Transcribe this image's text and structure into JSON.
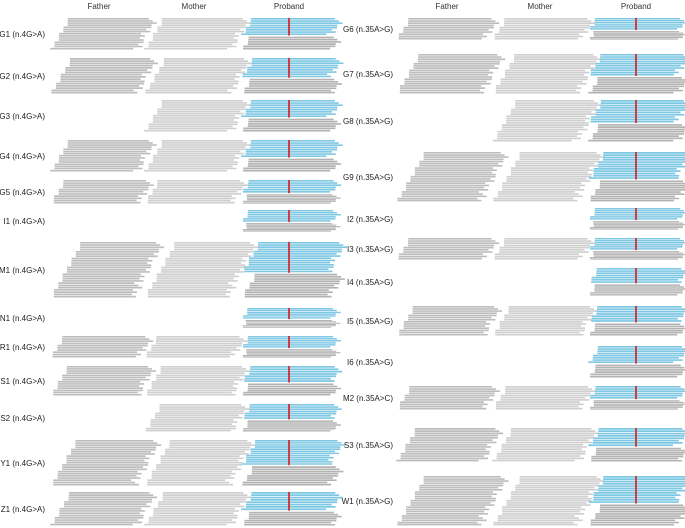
{
  "columns": [
    "Father",
    "Mother",
    "Proband"
  ],
  "colors": {
    "father_read": "#bdbdbd",
    "mother_read": "#cfcfcf",
    "proband_alt": "#7ec8e3",
    "proband_alt_light": "#b5def0",
    "proband_ref": "#b3b3b3",
    "variant_line": "#d7191c"
  },
  "left_panel": [
    {
      "label": "G1 (n.4G>A)",
      "father": true,
      "mother": true
    },
    {
      "label": "G2 (n.4G>A)",
      "father": true,
      "mother": true
    },
    {
      "label": "G3 (n.4G>A)",
      "father": false,
      "mother": true
    },
    {
      "label": "G4 (n.4G>A)",
      "father": true,
      "mother": true
    },
    {
      "label": "G5 (n.4G>A)",
      "father": true,
      "mother": true
    },
    {
      "label": "I1 (n.4G>A)",
      "father": false,
      "mother": false
    },
    {
      "label": "M1 (n.4G>A)",
      "father": true,
      "mother": true
    },
    {
      "label": "N1 (n.4G>A)",
      "father": false,
      "mother": false
    },
    {
      "label": "R1 (n.4G>A)",
      "father": true,
      "mother": true
    },
    {
      "label": "S1 (n.4G>A)",
      "father": true,
      "mother": true
    },
    {
      "label": "S2 (n.4G>A)",
      "father": false,
      "mother": true
    },
    {
      "label": "Y1 (n.4G>A)",
      "father": true,
      "mother": true
    },
    {
      "label": "Z1 (n.4G>A)",
      "father": true,
      "mother": true
    }
  ],
  "right_panel": [
    {
      "label": "G6 (n.35A>G)",
      "father": true,
      "mother": true
    },
    {
      "label": "G7 (n.35A>G)",
      "father": true,
      "mother": true
    },
    {
      "label": "G8 (n.35A>G)",
      "father": false,
      "mother": true
    },
    {
      "label": "G9 (n.35A>G)",
      "father": true,
      "mother": true
    },
    {
      "label": "I2 (n.35A>G)",
      "father": false,
      "mother": false
    },
    {
      "label": "I3 (n.35A>G)",
      "father": true,
      "mother": true
    },
    {
      "label": "I4 (n.35A>G)",
      "father": false,
      "mother": false
    },
    {
      "label": "I5 (n.35A>G)",
      "father": true,
      "mother": true
    },
    {
      "label": "I6 (n.35A>G)",
      "father": false,
      "mother": false
    },
    {
      "label": "M2 (n.35A>C)",
      "father": true,
      "mother": true
    },
    {
      "label": "S3 (n.35A>G)",
      "father": true,
      "mother": true
    },
    {
      "label": "W1 (n.35A>G)",
      "father": true,
      "mother": true
    }
  ]
}
